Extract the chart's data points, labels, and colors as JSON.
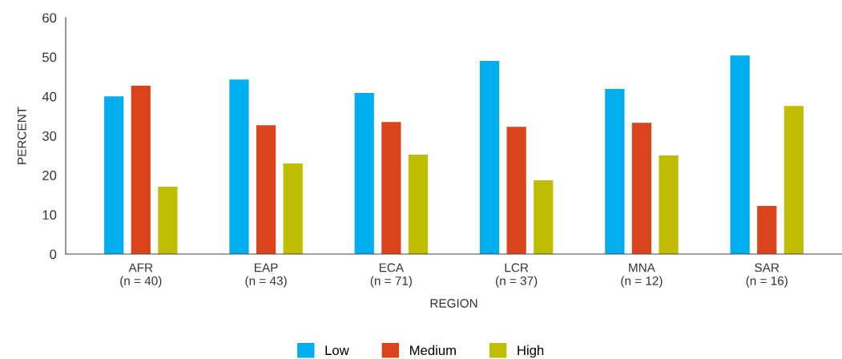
{
  "chart_data": {
    "type": "bar",
    "xlabel": "REGION",
    "ylabel": "PERCENT",
    "categories": [
      "AFR\n(n = 40)",
      "EAP\n(n = 43)",
      "ECA\n(n = 71)",
      "LCR\n(n = 37)",
      "MNA\n(n = 12)",
      "SAR\n(n = 16)"
    ],
    "series": [
      {
        "name": "Low",
        "color": "#00adef",
        "values": [
          40.0,
          44.3,
          40.9,
          49.0,
          41.9,
          50.4
        ]
      },
      {
        "name": "Medium",
        "color": "#d9441c",
        "values": [
          42.7,
          32.7,
          33.5,
          32.3,
          33.3,
          12.2
        ]
      },
      {
        "name": "High",
        "color": "#c0bc00",
        "values": [
          17.1,
          23.0,
          25.2,
          18.7,
          25.0,
          37.6
        ]
      }
    ],
    "ylim": [
      0,
      60
    ],
    "yticks": [
      0,
      10,
      20,
      30,
      40,
      50,
      60
    ],
    "grid": false,
    "legend": "bottom"
  }
}
